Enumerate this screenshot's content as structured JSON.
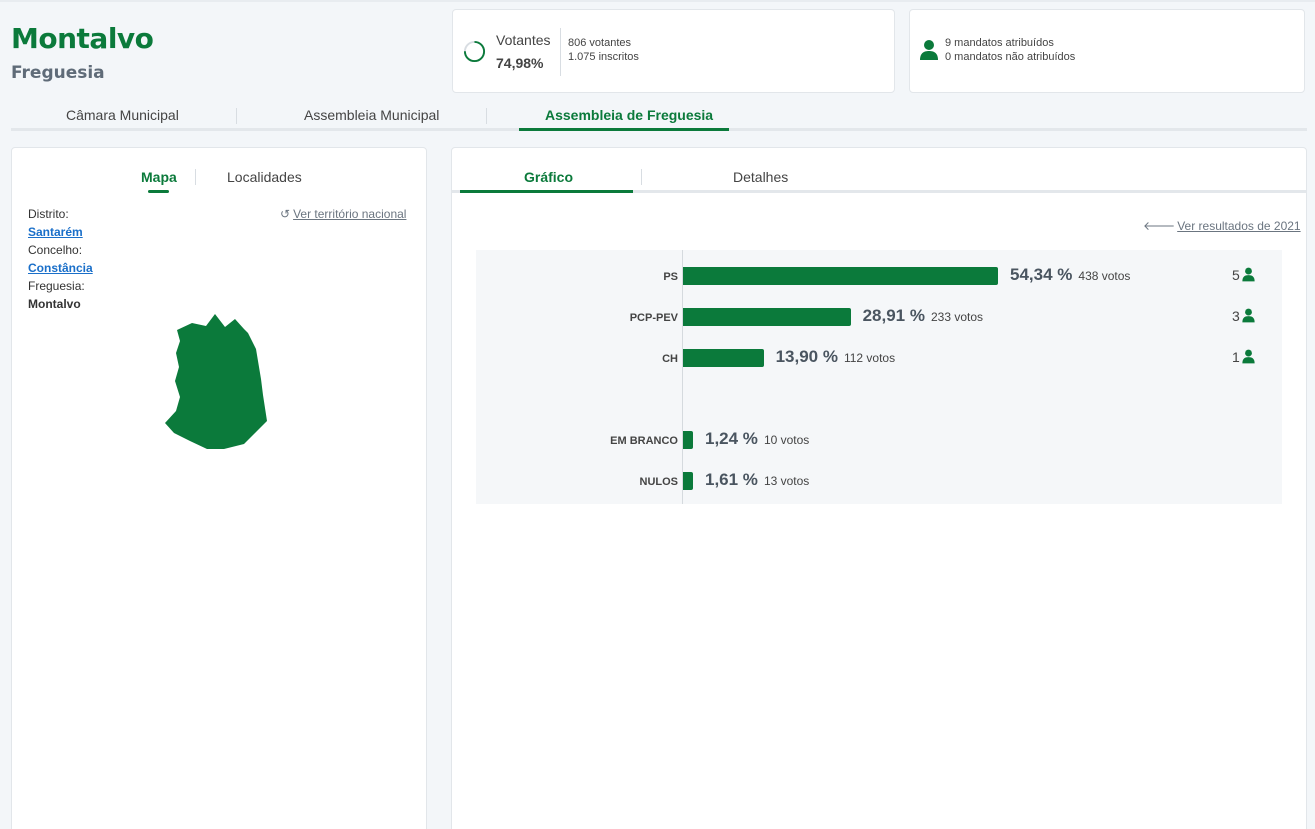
{
  "header": {
    "title": "Montalvo",
    "subtitle": "Freguesia"
  },
  "votantes": {
    "label": "Votantes",
    "percent": "74,98%",
    "percent_value": 74.98,
    "votantes_text": "806 votantes",
    "inscritos_text": "1.075 inscritos"
  },
  "mandatos": {
    "atribuidos": "9 mandatos atribuídos",
    "nao_atribuidos": "0 mandatos não atribuídos"
  },
  "main_tabs": [
    {
      "label": "Câmara Municipal"
    },
    {
      "label": "Assembleia Municipal"
    },
    {
      "label": "Assembleia de Freguesia",
      "active": true
    }
  ],
  "left_panel": {
    "tabs": [
      {
        "label": "Mapa",
        "active": true
      },
      {
        "label": "Localidades"
      }
    ],
    "distrito_label": "Distrito:",
    "distrito_value": "Santarém",
    "concelho_label": "Concelho:",
    "concelho_value": "Constância",
    "freguesia_label": "Freguesia:",
    "freguesia_value": "Montalvo",
    "ver_territorio": "Ver território nacional"
  },
  "right_panel": {
    "tabs": [
      {
        "label": "Gráfico",
        "active": true
      },
      {
        "label": "Detalhes"
      }
    ],
    "ver_resultados": "Ver resultados de 2021",
    "results": [
      {
        "party": "PS",
        "percent": "54,34 %",
        "value": 54.34,
        "votes": "438 votos",
        "seats": "5"
      },
      {
        "party": "PCP-PEV",
        "percent": "28,91 %",
        "value": 28.91,
        "votes": "233 votos",
        "seats": "3"
      },
      {
        "party": "CH",
        "percent": "13,90 %",
        "value": 13.9,
        "votes": "112 votos",
        "seats": "1"
      },
      {
        "party": "EM BRANCO",
        "percent": "1,24 %",
        "value": 1.24,
        "votes": "10 votos"
      },
      {
        "party": "NULOS",
        "percent": "1,61 %",
        "value": 1.61,
        "votes": "13 votos"
      }
    ]
  },
  "colors": {
    "brand": "#0b7a3b",
    "link": "#1a6fc9",
    "muted": "#6b7580"
  },
  "icons": {
    "person": "person-icon",
    "ring": "progress-ring-icon",
    "undo": "undo-icon",
    "arrow": "arrow-left-icon"
  }
}
